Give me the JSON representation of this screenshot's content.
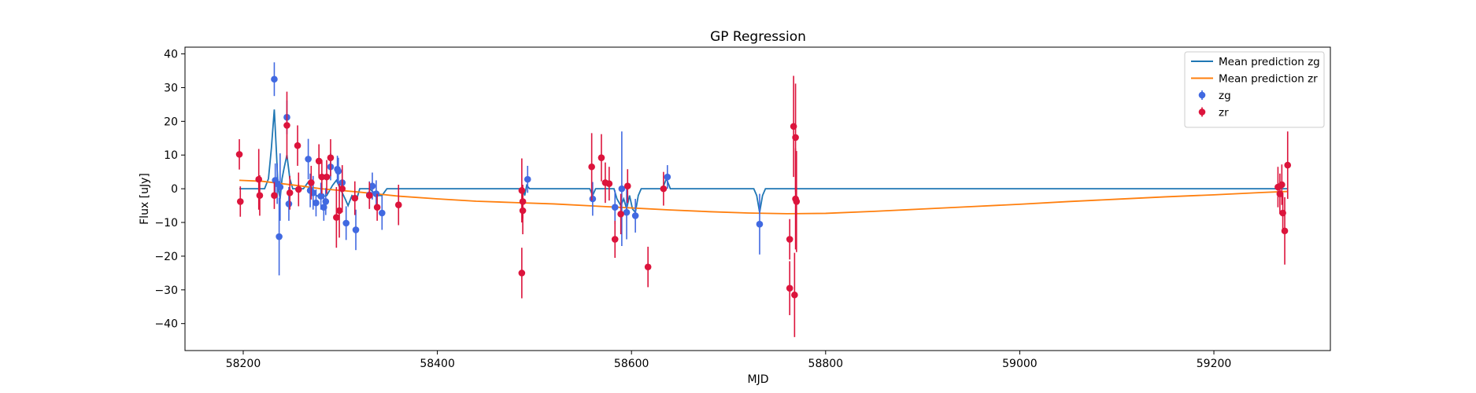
{
  "chart_data": {
    "type": "scatter",
    "title": "GP Regression",
    "xlabel": "MJD",
    "ylabel": "Flux [uJy]",
    "xlim": [
      58140,
      59320
    ],
    "ylim": [
      -48,
      42
    ],
    "xticks": [
      58200,
      58400,
      58600,
      58800,
      59000,
      59200
    ],
    "yticks": [
      -40,
      -30,
      -20,
      -10,
      0,
      10,
      20,
      30,
      40
    ],
    "legend_position": "upper right",
    "grid": false,
    "series": [
      {
        "name": "zg",
        "kind": "errorbar",
        "color": "#4169e1",
        "points": [
          {
            "x": 58232,
            "y": 32.5,
            "err": 5
          },
          {
            "x": 58233,
            "y": 2.5,
            "err": 5
          },
          {
            "x": 58235,
            "y": 1.5,
            "err": 6
          },
          {
            "x": 58237,
            "y": -14.2,
            "err": 11.5
          },
          {
            "x": 58238,
            "y": 0.5,
            "err": 10
          },
          {
            "x": 58245,
            "y": 21.2,
            "err": 5
          },
          {
            "x": 58247,
            "y": -4.5,
            "err": 5
          },
          {
            "x": 58267,
            "y": 8.8,
            "err": 6
          },
          {
            "x": 58269,
            "y": -0.5,
            "err": 5
          },
          {
            "x": 58272,
            "y": -1.2,
            "err": 5
          },
          {
            "x": 58275,
            "y": -4.2,
            "err": 4
          },
          {
            "x": 58280,
            "y": -2.2,
            "err": 4
          },
          {
            "x": 58283,
            "y": -5.5,
            "err": 4
          },
          {
            "x": 58285,
            "y": -3.8,
            "err": 4
          },
          {
            "x": 58290,
            "y": 6.5,
            "err": 4
          },
          {
            "x": 58297,
            "y": 5.8,
            "err": 4
          },
          {
            "x": 58298,
            "y": 5.2,
            "err": 4
          },
          {
            "x": 58302,
            "y": 1.8,
            "err": 4
          },
          {
            "x": 58306,
            "y": -10.2,
            "err": 5
          },
          {
            "x": 58316,
            "y": -12.2,
            "err": 6
          },
          {
            "x": 58330,
            "y": -1.8,
            "err": 4
          },
          {
            "x": 58333,
            "y": 0.8,
            "err": 4
          },
          {
            "x": 58337,
            "y": -1.5,
            "err": 4
          },
          {
            "x": 58343,
            "y": -7.2,
            "err": 5
          },
          {
            "x": 58493,
            "y": 2.8,
            "err": 4
          },
          {
            "x": 58560,
            "y": -3.0,
            "err": 5
          },
          {
            "x": 58583,
            "y": -5.5,
            "err": 5
          },
          {
            "x": 58590,
            "y": 0.0,
            "err": 17
          },
          {
            "x": 58595,
            "y": -7.0,
            "err": 8
          },
          {
            "x": 58604,
            "y": -8.0,
            "err": 5
          },
          {
            "x": 58637,
            "y": 3.5,
            "err": 3.5
          },
          {
            "x": 58732,
            "y": -10.5,
            "err": 9
          }
        ]
      },
      {
        "name": "zr",
        "kind": "errorbar",
        "color": "#dc143c",
        "points": [
          {
            "x": 58196,
            "y": 10.2,
            "err": 4.5
          },
          {
            "x": 58197,
            "y": -3.8,
            "err": 4.5
          },
          {
            "x": 58216,
            "y": 2.8,
            "err": 9
          },
          {
            "x": 58217,
            "y": -2.0,
            "err": 6
          },
          {
            "x": 58232,
            "y": -2.0,
            "err": 4
          },
          {
            "x": 58245,
            "y": 18.8,
            "err": 10
          },
          {
            "x": 58248,
            "y": -1.2,
            "err": 5
          },
          {
            "x": 58256,
            "y": 12.8,
            "err": 6
          },
          {
            "x": 58257,
            "y": -0.2,
            "err": 5
          },
          {
            "x": 58270,
            "y": 1.8,
            "err": 5
          },
          {
            "x": 58278,
            "y": 8.2,
            "err": 5
          },
          {
            "x": 58281,
            "y": 3.5,
            "err": 5
          },
          {
            "x": 58286,
            "y": 3.5,
            "err": 5
          },
          {
            "x": 58290,
            "y": 9.2,
            "err": 5.5
          },
          {
            "x": 58296,
            "y": -8.5,
            "err": 9
          },
          {
            "x": 58299,
            "y": -6.5,
            "err": 8
          },
          {
            "x": 58302,
            "y": 0.0,
            "err": 7
          },
          {
            "x": 58315,
            "y": -2.8,
            "err": 5
          },
          {
            "x": 58330,
            "y": -2.0,
            "err": 4
          },
          {
            "x": 58338,
            "y": -5.5,
            "err": 4
          },
          {
            "x": 58360,
            "y": -4.8,
            "err": 6
          },
          {
            "x": 58487,
            "y": -0.5,
            "err": 9.5
          },
          {
            "x": 58488,
            "y": -3.8,
            "err": 5
          },
          {
            "x": 58488,
            "y": -6.5,
            "err": 7
          },
          {
            "x": 58487,
            "y": -25.0,
            "err": 7.5
          },
          {
            "x": 58559,
            "y": 6.5,
            "err": 10
          },
          {
            "x": 58569,
            "y": 9.2,
            "err": 7
          },
          {
            "x": 58573,
            "y": 1.8,
            "err": 6
          },
          {
            "x": 58577,
            "y": 1.5,
            "err": 5
          },
          {
            "x": 58583,
            "y": -15.0,
            "err": 5.5
          },
          {
            "x": 58589,
            "y": -7.5,
            "err": 6
          },
          {
            "x": 58596,
            "y": 0.8,
            "err": 5
          },
          {
            "x": 58617,
            "y": -23.2,
            "err": 6
          },
          {
            "x": 58633,
            "y": 0.0,
            "err": 5
          },
          {
            "x": 58763,
            "y": -15.0,
            "err": 6
          },
          {
            "x": 58763,
            "y": -29.5,
            "err": 8
          },
          {
            "x": 58767,
            "y": 18.5,
            "err": 15
          },
          {
            "x": 58768,
            "y": -31.5,
            "err": 12.5
          },
          {
            "x": 58769,
            "y": 15.2,
            "err": 16
          },
          {
            "x": 58769,
            "y": -3.0,
            "err": 15
          },
          {
            "x": 58770,
            "y": -3.8,
            "err": 15
          },
          {
            "x": 59266,
            "y": 0.5,
            "err": 6
          },
          {
            "x": 59268,
            "y": -1.5,
            "err": 6
          },
          {
            "x": 59270,
            "y": 1.2,
            "err": 6
          },
          {
            "x": 59271,
            "y": -7.2,
            "err": 6
          },
          {
            "x": 59273,
            "y": -12.5,
            "err": 10
          },
          {
            "x": 59276,
            "y": 7.0,
            "err": 10
          }
        ]
      },
      {
        "name": "Mean prediction zg",
        "kind": "line",
        "color": "#1f77b4",
        "points": [
          [
            58196,
            0
          ],
          [
            58222,
            0
          ],
          [
            58226,
            3
          ],
          [
            58229,
            12
          ],
          [
            58232,
            23.5
          ],
          [
            58234,
            12
          ],
          [
            58236,
            0
          ],
          [
            58238,
            -3
          ],
          [
            58240,
            3
          ],
          [
            58242,
            6
          ],
          [
            58245,
            10
          ],
          [
            58248,
            3
          ],
          [
            58251,
            0
          ],
          [
            58262,
            0
          ],
          [
            58267,
            2
          ],
          [
            58270,
            0
          ],
          [
            58275,
            -2
          ],
          [
            58280,
            -2.5
          ],
          [
            58286,
            -2
          ],
          [
            58292,
            1
          ],
          [
            58296,
            2.5
          ],
          [
            58300,
            0
          ],
          [
            58305,
            -3
          ],
          [
            58308,
            -5
          ],
          [
            58312,
            -2
          ],
          [
            58317,
            -3
          ],
          [
            58320,
            0
          ],
          [
            58330,
            0
          ],
          [
            58338,
            -2
          ],
          [
            58343,
            -2
          ],
          [
            58348,
            0
          ],
          [
            58488,
            0
          ],
          [
            58490,
            -2
          ],
          [
            58492,
            1
          ],
          [
            58495,
            0
          ],
          [
            58557,
            0
          ],
          [
            58560,
            -2
          ],
          [
            58563,
            0
          ],
          [
            58582,
            0
          ],
          [
            58585,
            -3
          ],
          [
            58589,
            -5
          ],
          [
            58592,
            -3
          ],
          [
            58595,
            -6
          ],
          [
            58598,
            -2
          ],
          [
            58601,
            -6
          ],
          [
            58604,
            -7
          ],
          [
            58607,
            -2
          ],
          [
            58610,
            0
          ],
          [
            58632,
            0
          ],
          [
            58636,
            3
          ],
          [
            58640,
            0
          ],
          [
            58726,
            0
          ],
          [
            58729,
            -2
          ],
          [
            58732,
            -7
          ],
          [
            58735,
            -2
          ],
          [
            58738,
            0
          ],
          [
            59276,
            0
          ]
        ]
      },
      {
        "name": "Mean prediction zr",
        "kind": "line",
        "color": "#ff7f0e",
        "points": [
          [
            58196,
            2.5
          ],
          [
            58220,
            2.2
          ],
          [
            58240,
            1.5
          ],
          [
            58260,
            0.8
          ],
          [
            58280,
            0.0
          ],
          [
            58300,
            -0.5
          ],
          [
            58320,
            -1.0
          ],
          [
            58340,
            -1.6
          ],
          [
            58360,
            -2.2
          ],
          [
            58400,
            -3.0
          ],
          [
            58440,
            -3.7
          ],
          [
            58480,
            -4.1
          ],
          [
            58520,
            -4.5
          ],
          [
            58560,
            -5.1
          ],
          [
            58600,
            -5.7
          ],
          [
            58640,
            -6.3
          ],
          [
            58680,
            -6.8
          ],
          [
            58720,
            -7.2
          ],
          [
            58760,
            -7.4
          ],
          [
            58800,
            -7.3
          ],
          [
            58850,
            -6.7
          ],
          [
            58900,
            -6.0
          ],
          [
            58950,
            -5.3
          ],
          [
            59000,
            -4.6
          ],
          [
            59050,
            -3.8
          ],
          [
            59100,
            -3.1
          ],
          [
            59150,
            -2.4
          ],
          [
            59200,
            -1.8
          ],
          [
            59250,
            -1.1
          ],
          [
            59276,
            -0.8
          ]
        ]
      }
    ]
  }
}
